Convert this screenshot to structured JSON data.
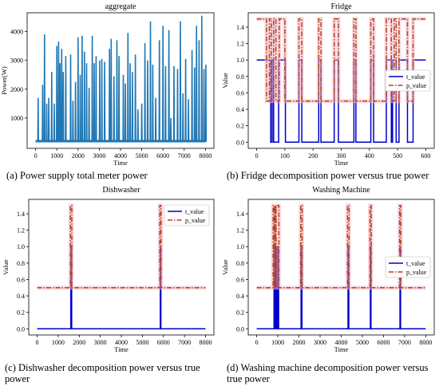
{
  "panels": [
    {
      "key": "aggregate",
      "caption": "(a) Power supply total meter power",
      "chart_data": {
        "type": "line",
        "title": "aggregate",
        "xlabel": "Time",
        "ylabel": "Power(W)",
        "xlim": [
          -400,
          8400
        ],
        "ylim": [
          -50,
          4650
        ],
        "xticks": [
          0,
          1000,
          2000,
          3000,
          4000,
          5000,
          6000,
          7000,
          8000
        ],
        "yticks": [
          1000,
          2000,
          3000,
          4000
        ],
        "legend": "none",
        "series_color": "#1f77b4",
        "baseline": 200,
        "spikes": [
          [
            120,
            1700
          ],
          [
            330,
            2150
          ],
          [
            420,
            3900
          ],
          [
            520,
            1500
          ],
          [
            620,
            1700
          ],
          [
            760,
            2600
          ],
          [
            880,
            1500
          ],
          [
            1000,
            3500
          ],
          [
            1080,
            3650
          ],
          [
            1150,
            2900
          ],
          [
            1230,
            3400
          ],
          [
            1300,
            2600
          ],
          [
            1420,
            3150
          ],
          [
            1650,
            3200
          ],
          [
            1760,
            1600
          ],
          [
            1880,
            2250
          ],
          [
            2000,
            3800
          ],
          [
            2100,
            2500
          ],
          [
            2190,
            3850
          ],
          [
            2300,
            3300
          ],
          [
            2400,
            2900
          ],
          [
            2520,
            2050
          ],
          [
            2670,
            3850
          ],
          [
            2760,
            2900
          ],
          [
            2850,
            3150
          ],
          [
            3020,
            3000
          ],
          [
            3120,
            3050
          ],
          [
            3250,
            2950
          ],
          [
            3480,
            3400
          ],
          [
            3560,
            3750
          ],
          [
            3690,
            2450
          ],
          [
            3830,
            3700
          ],
          [
            3930,
            3150
          ],
          [
            4130,
            2500
          ],
          [
            4230,
            2200
          ],
          [
            4350,
            3950
          ],
          [
            4450,
            2900
          ],
          [
            4560,
            2600
          ],
          [
            4700,
            3200
          ],
          [
            4820,
            1300
          ],
          [
            5000,
            1500
          ],
          [
            5150,
            3600
          ],
          [
            5280,
            3000
          ],
          [
            5410,
            4350
          ],
          [
            5520,
            2850
          ],
          [
            5660,
            1700
          ],
          [
            5830,
            3700
          ],
          [
            6000,
            4200
          ],
          [
            6120,
            2800
          ],
          [
            6280,
            4050
          ],
          [
            6370,
            1000
          ],
          [
            6520,
            2800
          ],
          [
            6690,
            2700
          ],
          [
            6820,
            4350
          ],
          [
            6940,
            1850
          ],
          [
            7070,
            3050
          ],
          [
            7200,
            1650
          ],
          [
            7370,
            3350
          ],
          [
            7490,
            2750
          ],
          [
            7580,
            4200
          ],
          [
            7700,
            3700
          ],
          [
            7830,
            4550
          ],
          [
            7930,
            2700
          ],
          [
            8020,
            2850
          ]
        ]
      }
    },
    {
      "key": "fridge",
      "caption": "(b) Fridge decomposition power versus true power",
      "chart_data": {
        "type": "line",
        "title": "Fridge",
        "xlabel": "Time",
        "ylabel": "Value",
        "xlim": [
          -30,
          630
        ],
        "ylim": [
          -0.075,
          1.575
        ],
        "xticks": [
          0,
          100,
          200,
          300,
          400,
          500,
          600
        ],
        "yticks": [
          0.0,
          0.2,
          0.4,
          0.6,
          0.8,
          1.0,
          1.2,
          1.4
        ],
        "legend": "center-right",
        "series": [
          {
            "name": "t_value",
            "color": "#0000cc",
            "segments": [
              [
                0,
                50,
                1
              ],
              [
                50,
                55,
                0
              ],
              [
                55,
                60,
                1
              ],
              [
                60,
                78,
                0
              ],
              [
                78,
                102,
                1
              ],
              [
                102,
                150,
                0
              ],
              [
                150,
                160,
                1
              ],
              [
                160,
                220,
                0
              ],
              [
                220,
                228,
                1
              ],
              [
                228,
                275,
                0
              ],
              [
                275,
                290,
                1
              ],
              [
                290,
                345,
                0
              ],
              [
                345,
                352,
                1
              ],
              [
                352,
                405,
                0
              ],
              [
                405,
                415,
                1
              ],
              [
                415,
                460,
                0
              ],
              [
                460,
                478,
                1
              ],
              [
                478,
                482,
                0
              ],
              [
                482,
                495,
                1
              ],
              [
                495,
                505,
                0
              ],
              [
                505,
                535,
                1
              ],
              [
                535,
                555,
                0
              ],
              [
                555,
                600,
                1
              ]
            ]
          },
          {
            "name": "p_value",
            "color": "#b5401e",
            "segments": [
              [
                0,
                35,
                1.5
              ],
              [
                35,
                45,
                0.5
              ],
              [
                45,
                52,
                1.5
              ],
              [
                52,
                60,
                0.5
              ],
              [
                60,
                68,
                1.5
              ],
              [
                68,
                80,
                0.5
              ],
              [
                80,
                100,
                1.5
              ],
              [
                100,
                150,
                0.5
              ],
              [
                150,
                160,
                1.5
              ],
              [
                160,
                220,
                0.5
              ],
              [
                220,
                228,
                1.5
              ],
              [
                228,
                275,
                0.5
              ],
              [
                275,
                290,
                1.5
              ],
              [
                290,
                345,
                0.5
              ],
              [
                345,
                352,
                1.5
              ],
              [
                352,
                405,
                0.5
              ],
              [
                405,
                415,
                1.5
              ],
              [
                415,
                460,
                0.5
              ],
              [
                460,
                478,
                1.5
              ],
              [
                478,
                488,
                0.5
              ],
              [
                488,
                495,
                1.5
              ],
              [
                495,
                505,
                0.5
              ],
              [
                505,
                535,
                1.5
              ],
              [
                535,
                555,
                0.5
              ],
              [
                555,
                600,
                1.5
              ]
            ]
          }
        ]
      }
    },
    {
      "key": "dishwasher",
      "caption": "(c) Dishwasher decomposition power versus true power",
      "chart_data": {
        "type": "line",
        "title": "Dishwasher",
        "xlabel": "Time",
        "ylabel": "Value",
        "xlim": [
          -400,
          8400
        ],
        "ylim": [
          -0.075,
          1.575
        ],
        "xticks": [
          0,
          1000,
          2000,
          3000,
          4000,
          5000,
          6000,
          7000,
          8000
        ],
        "yticks": [
          0.0,
          0.2,
          0.4,
          0.6,
          0.8,
          1.0,
          1.2,
          1.4
        ],
        "legend": "top-right",
        "series": [
          {
            "name": "t_value",
            "color": "#0000cc",
            "segments": [
              [
                0,
                1600,
                0
              ],
              [
                1600,
                1640,
                1
              ],
              [
                1640,
                5850,
                0
              ],
              [
                5850,
                5880,
                1
              ],
              [
                5880,
                8000,
                0
              ]
            ]
          },
          {
            "name": "p_value",
            "color": "#b5401e",
            "segments": [
              [
                0,
                1580,
                0.5
              ],
              [
                1580,
                1650,
                1.5
              ],
              [
                1650,
                5830,
                0.5
              ],
              [
                5830,
                5890,
                1.5
              ],
              [
                5890,
                8000,
                0.5
              ]
            ]
          }
        ]
      }
    },
    {
      "key": "washing",
      "caption": "(d) Washing machine decomposition power versus true power",
      "chart_data": {
        "type": "line",
        "title": "Washing Machine",
        "xlabel": "Time",
        "ylabel": "Value",
        "xlim": [
          -400,
          8400
        ],
        "ylim": [
          -0.075,
          1.575
        ],
        "xticks": [
          0,
          1000,
          2000,
          3000,
          4000,
          5000,
          6000,
          7000,
          8000
        ],
        "yticks": [
          0.0,
          0.2,
          0.4,
          0.6,
          0.8,
          1.0,
          1.2,
          1.4
        ],
        "legend": "center-right",
        "series": [
          {
            "name": "t_value",
            "color": "#0000cc",
            "segments": [
              [
                0,
                820,
                0
              ],
              [
                820,
                860,
                1
              ],
              [
                860,
                920,
                0
              ],
              [
                920,
                960,
                1
              ],
              [
                960,
                1010,
                0
              ],
              [
                1010,
                1040,
                1
              ],
              [
                1040,
                2100,
                0
              ],
              [
                2100,
                2140,
                1
              ],
              [
                2140,
                4320,
                0
              ],
              [
                4320,
                4360,
                1
              ],
              [
                4360,
                5380,
                0
              ],
              [
                5380,
                5410,
                1
              ],
              [
                5410,
                6780,
                0
              ],
              [
                6780,
                6810,
                1
              ],
              [
                6810,
                8000,
                0
              ]
            ]
          },
          {
            "name": "p_value",
            "color": "#b5401e",
            "segments": [
              [
                0,
                780,
                0.5
              ],
              [
                780,
                830,
                1.5
              ],
              [
                830,
                850,
                0.5
              ],
              [
                850,
                900,
                1.5
              ],
              [
                900,
                920,
                0.5
              ],
              [
                920,
                1050,
                1.5
              ],
              [
                1050,
                2080,
                0.5
              ],
              [
                2080,
                2150,
                1.5
              ],
              [
                2150,
                4300,
                0.5
              ],
              [
                4300,
                4370,
                1.5
              ],
              [
                4370,
                5360,
                0.5
              ],
              [
                5360,
                5420,
                1.5
              ],
              [
                5420,
                6760,
                0.5
              ],
              [
                6760,
                6820,
                1.5
              ],
              [
                6820,
                8000,
                0.5
              ]
            ]
          }
        ]
      }
    }
  ]
}
